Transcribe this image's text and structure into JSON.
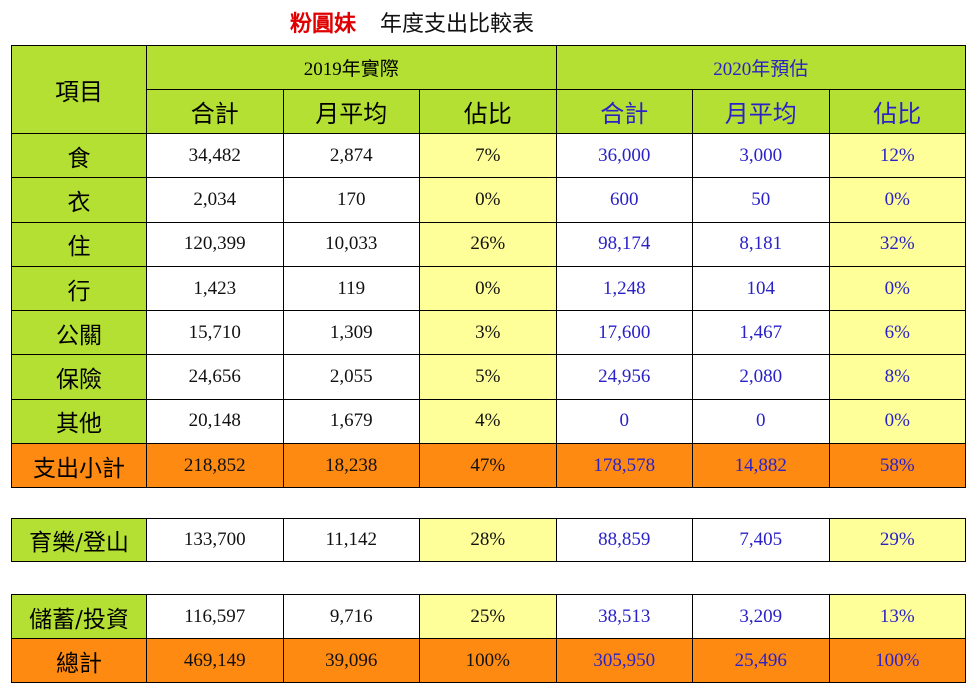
{
  "title": {
    "brand": "粉圓妹",
    "subtitle": "年度支出比較表"
  },
  "header": {
    "item": "項目",
    "group_2019": "2019年實際",
    "group_2020": "2020年預估",
    "cols": [
      "合計",
      "月平均",
      "佔比",
      "合計",
      "月平均",
      "佔比"
    ]
  },
  "rows": [
    {
      "label": "食",
      "v": [
        "34,482",
        "2,874",
        "7%",
        "36,000",
        "3,000",
        "12%"
      ]
    },
    {
      "label": "衣",
      "v": [
        "2,034",
        "170",
        "0%",
        "600",
        "50",
        "0%"
      ]
    },
    {
      "label": "住",
      "v": [
        "120,399",
        "10,033",
        "26%",
        "98,174",
        "8,181",
        "32%"
      ]
    },
    {
      "label": "行",
      "v": [
        "1,423",
        "119",
        "0%",
        "1,248",
        "104",
        "0%"
      ]
    },
    {
      "label": "公關",
      "v": [
        "15,710",
        "1,309",
        "3%",
        "17,600",
        "1,467",
        "6%"
      ]
    },
    {
      "label": "保險",
      "v": [
        "24,656",
        "2,055",
        "5%",
        "24,956",
        "2,080",
        "8%"
      ]
    },
    {
      "label": "其他",
      "v": [
        "20,148",
        "1,679",
        "4%",
        "0",
        "0",
        "0%"
      ]
    }
  ],
  "subtotal": {
    "label": "支出小計",
    "v": [
      "218,852",
      "18,238",
      "47%",
      "178,578",
      "14,882",
      "58%"
    ]
  },
  "leisure": {
    "label": "育樂/登山",
    "v": [
      "133,700",
      "11,142",
      "28%",
      "88,859",
      "7,405",
      "29%"
    ]
  },
  "savings": {
    "label": "儲蓄/投資",
    "v": [
      "116,597",
      "9,716",
      "25%",
      "38,513",
      "3,209",
      "13%"
    ]
  },
  "total": {
    "label": "總計",
    "v": [
      "469,149",
      "39,096",
      "100%",
      "305,950",
      "25,496",
      "100%"
    ]
  },
  "colors": {
    "header_green": "#b4e033",
    "ratio_yellow": "#ffff99",
    "total_orange": "#ff8a12",
    "estimate_blue": "#2a22c8",
    "brand_red": "#e00000"
  }
}
